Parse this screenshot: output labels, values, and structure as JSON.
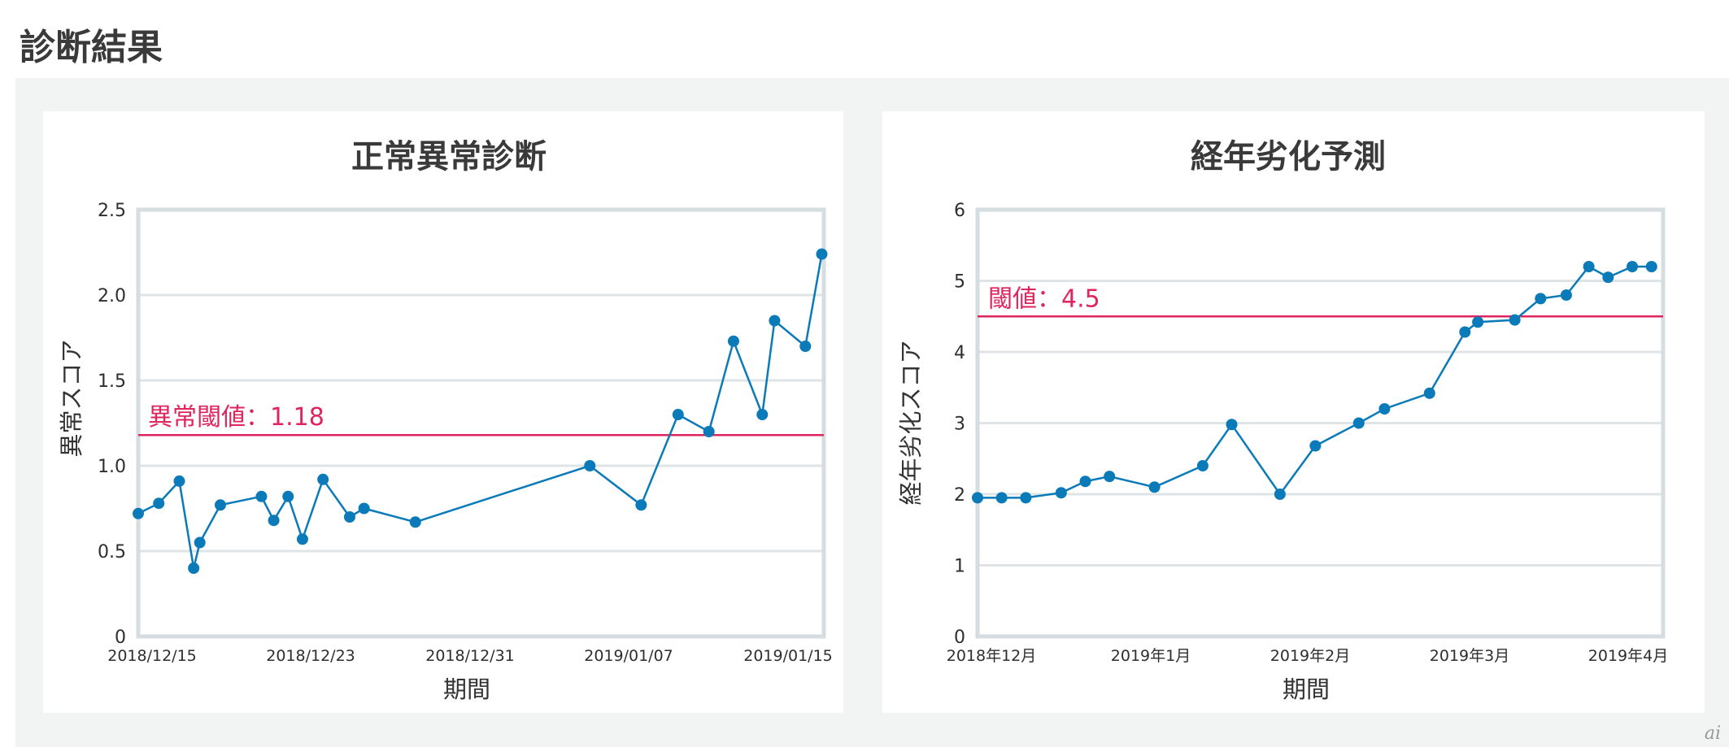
{
  "page": {
    "title": "診断結果",
    "watermark": "ai"
  },
  "chart_data": [
    {
      "type": "line",
      "title": "正常異常診断",
      "xlabel": "期間",
      "ylabel": "異常スコア",
      "ylim": [
        0,
        2.5
      ],
      "yticks": [
        "0",
        "0.5",
        "1.0",
        "1.5",
        "2.0",
        "2.5"
      ],
      "xticks": [
        "2018/12/15",
        "2018/12/23",
        "2018/12/31",
        "2019/01/07",
        "2019/01/15"
      ],
      "threshold": {
        "label": "異常閾値：1.18",
        "value": 1.18
      },
      "color": "#0a7ab8",
      "threshold_color": "#e0245e",
      "points": [
        [
          "2018-12-15",
          0.72
        ],
        [
          "2018-12-16",
          0.78
        ],
        [
          "2018-12-17",
          0.91
        ],
        [
          "2018-12-17.7",
          0.4
        ],
        [
          "2018-12-18",
          0.55
        ],
        [
          "2018-12-19",
          0.77
        ],
        [
          "2018-12-21",
          0.82
        ],
        [
          "2018-12-21.6",
          0.68
        ],
        [
          "2018-12-22.3",
          0.82
        ],
        [
          "2018-12-23",
          0.57
        ],
        [
          "2018-12-24",
          0.92
        ],
        [
          "2018-12-25.3",
          0.7
        ],
        [
          "2018-12-26",
          0.75
        ],
        [
          "2018-12-28.5",
          0.67
        ],
        [
          "2019-01-06",
          1.0
        ],
        [
          "2019-01-08.5",
          0.77
        ],
        [
          "2019-01-10.3",
          1.3
        ],
        [
          "2019-01-11.8",
          1.2
        ],
        [
          "2019-01-13",
          1.73
        ],
        [
          "2019-01-14.4",
          1.3
        ],
        [
          "2019-01-15",
          1.85
        ],
        [
          "2019-01-16.5",
          1.7
        ],
        [
          "2019-01-17.3",
          2.24
        ]
      ]
    },
    {
      "type": "line",
      "title": "経年劣化予測",
      "xlabel": "期間",
      "ylabel": "経年劣化スコア",
      "ylim": [
        0,
        6
      ],
      "yticks": [
        "0",
        "1",
        "2",
        "3",
        "4",
        "5",
        "6"
      ],
      "xticks": [
        "2018年12月",
        "2019年1月",
        "2019年2月",
        "2019年3月",
        "2019年4月"
      ],
      "threshold": {
        "label": "閾値：4.5",
        "value": 4.5
      },
      "color": "#0a7ab8",
      "threshold_color": "#e0245e",
      "points": [
        [
          0.0,
          1.95
        ],
        [
          0.15,
          1.95
        ],
        [
          0.3,
          1.95
        ],
        [
          0.52,
          2.02
        ],
        [
          0.67,
          2.18
        ],
        [
          0.82,
          2.25
        ],
        [
          1.1,
          2.1
        ],
        [
          1.4,
          2.4
        ],
        [
          1.58,
          2.98
        ],
        [
          1.88,
          2.0
        ],
        [
          2.1,
          2.68
        ],
        [
          2.37,
          3.0
        ],
        [
          2.53,
          3.2
        ],
        [
          2.81,
          3.42
        ],
        [
          3.03,
          4.28
        ],
        [
          3.11,
          4.42
        ],
        [
          3.34,
          4.45
        ],
        [
          3.5,
          4.75
        ],
        [
          3.66,
          4.8
        ],
        [
          3.8,
          5.2
        ],
        [
          3.92,
          5.05
        ],
        [
          4.07,
          5.2
        ],
        [
          4.19,
          5.2
        ]
      ]
    }
  ]
}
